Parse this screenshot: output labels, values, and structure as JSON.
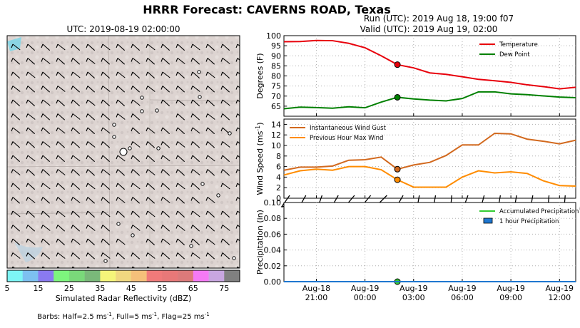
{
  "title": "HRRR Forecast: CAVERNS ROAD, Texas",
  "map": {
    "time_label": "UTC: 2019-08-19 02:00:00",
    "colorbar": {
      "label": "Simulated Radar Reflectivity (dBZ)",
      "ticks": [
        "5",
        "15",
        "25",
        "35",
        "45",
        "55",
        "65",
        "75"
      ],
      "colors": [
        "#7df5f5",
        "#7dc0f0",
        "#8a7af0",
        "#7df57d",
        "#7ad97a",
        "#7ab87a",
        "#f5f57a",
        "#f0d880",
        "#f5c07a",
        "#f07a7a",
        "#e87878",
        "#dc7a7a",
        "#f57af5",
        "#c8a6e0",
        "#808080"
      ]
    },
    "barb_note": "Barbs: Half=2.5 ms",
    "barb_note_sup1": "-1",
    "barb_note_mid": ", Full=5 ms",
    "barb_note_sup2": "-1",
    "barb_note_mid2": ", Flag=25 ms",
    "barb_note_sup3": "-1"
  },
  "header": {
    "run": "Run (UTC): 2019 Aug 18, 19:00 f07",
    "valid": "Valid (UTC): 2019 Aug 19, 02:00"
  },
  "chart_data": [
    {
      "type": "line",
      "ylabel": "Degrees (F)",
      "ylim": [
        60,
        100
      ],
      "yticks": [
        "65",
        "70",
        "75",
        "80",
        "85",
        "90",
        "95",
        "100"
      ],
      "x_hours": [
        0,
        1,
        2,
        3,
        4,
        5,
        6,
        7,
        8,
        9,
        10,
        11,
        12,
        13,
        14,
        15,
        16,
        17,
        18
      ],
      "series": [
        {
          "name": "Temperature",
          "color": "#e8000b",
          "values": [
            97.0,
            97.1,
            97.6,
            97.5,
            96.2,
            94.0,
            90.0,
            85.6,
            84.0,
            81.5,
            80.8,
            79.6,
            78.3,
            77.6,
            76.8,
            75.6,
            74.7,
            73.6,
            74.4
          ]
        },
        {
          "name": "Dew Point",
          "color": "#008000",
          "values": [
            63.7,
            64.5,
            64.3,
            64.0,
            64.7,
            64.2,
            67.0,
            69.4,
            68.6,
            68.0,
            67.6,
            68.8,
            72.1,
            72.1,
            71.1,
            70.7,
            70.1,
            69.5,
            69.2
          ]
        }
      ],
      "marker_index": 7,
      "legend": "top-right",
      "grid": true
    },
    {
      "type": "line",
      "ylabel": "Wind Speed (ms",
      "ylabel_sup": "-1",
      "ylabel_end": ")",
      "ylim": [
        0,
        15
      ],
      "yticks": [
        "0",
        "2",
        "4",
        "6",
        "8",
        "10",
        "12",
        "14"
      ],
      "x_hours": [
        0,
        1,
        2,
        3,
        4,
        5,
        6,
        7,
        8,
        9,
        10,
        11,
        12,
        13,
        14,
        15,
        16,
        17,
        18
      ],
      "series": [
        {
          "name": "Instantaneous Wind Gust",
          "color": "#d2691e",
          "values": [
            5.3,
            5.9,
            5.9,
            6.1,
            7.2,
            7.3,
            7.8,
            5.5,
            6.3,
            6.8,
            8.1,
            10.1,
            10.1,
            12.3,
            12.2,
            11.2,
            10.8,
            10.3,
            11.0
          ]
        },
        {
          "name": "Previous Hour Max Wind",
          "color": "#ff8c00",
          "values": [
            4.4,
            5.2,
            5.5,
            5.3,
            6.0,
            6.0,
            5.4,
            3.5,
            2.1,
            2.1,
            2.1,
            4.0,
            5.2,
            4.8,
            5.0,
            4.7,
            3.3,
            2.4,
            2.3
          ]
        }
      ],
      "barb_dirs_deg": [
        145,
        150,
        160,
        150,
        140,
        140,
        135,
        150,
        170,
        170,
        175,
        160,
        165,
        170,
        170,
        170,
        175,
        175,
        175
      ],
      "marker_index": 7,
      "legend": "top-left",
      "grid": true
    },
    {
      "type": "bar",
      "ylabel": "Precipitation (in)",
      "ylim": [
        0,
        0.1
      ],
      "yticks": [
        "0.00",
        "0.02",
        "0.04",
        "0.06",
        "0.08",
        "0.10"
      ],
      "x_hours": [
        0,
        1,
        2,
        3,
        4,
        5,
        6,
        7,
        8,
        9,
        10,
        11,
        12,
        13,
        14,
        15,
        16,
        17,
        18
      ],
      "series": [
        {
          "name": "Accumulated Precipitation",
          "color": "#33cc33",
          "values": [
            0,
            0,
            0,
            0,
            0,
            0,
            0,
            0,
            0,
            0,
            0,
            0,
            0,
            0,
            0,
            0,
            0,
            0,
            0
          ]
        },
        {
          "name": "1 hour Precipitation",
          "color": "#1f77d0",
          "values": [
            0,
            0,
            0,
            0,
            0,
            0,
            0,
            0,
            0,
            0,
            0,
            0,
            0,
            0,
            0,
            0,
            0,
            0,
            0
          ]
        }
      ],
      "marker_index": 7,
      "legend": "top-right",
      "grid": true
    }
  ],
  "x_axis": {
    "ticks": [
      {
        "hour": 2,
        "line1": "Aug-18",
        "line2": "21:00"
      },
      {
        "hour": 5,
        "line1": "Aug-19",
        "line2": "00:00"
      },
      {
        "hour": 8,
        "line1": "Aug-19",
        "line2": "03:00"
      },
      {
        "hour": 11,
        "line1": "Aug-19",
        "line2": "06:00"
      },
      {
        "hour": 14,
        "line1": "Aug-19",
        "line2": "09:00"
      },
      {
        "hour": 17,
        "line1": "Aug-19",
        "line2": "12:00"
      }
    ]
  }
}
